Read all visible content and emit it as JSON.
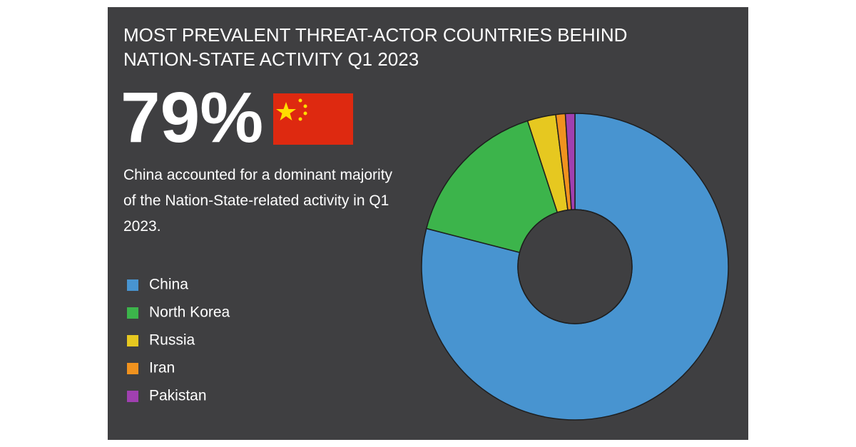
{
  "chart_data": {
    "type": "pie",
    "title": "MOST PREVALENT THREAT-ACTOR COUNTRIES BEHIND NATION-STATE ACTIVITY Q1 2023",
    "headline": "79%",
    "description": "China accounted for a dominant majority of the Nation-State-related activity in Q1 2023.",
    "categories": [
      "China",
      "North Korea",
      "Russia",
      "Iran",
      "Pakistan"
    ],
    "values": [
      79,
      16,
      3,
      1,
      1
    ],
    "colors": [
      "#4894d0",
      "#3cb44b",
      "#e6c820",
      "#f0921e",
      "#a040b0"
    ],
    "donut": true
  }
}
